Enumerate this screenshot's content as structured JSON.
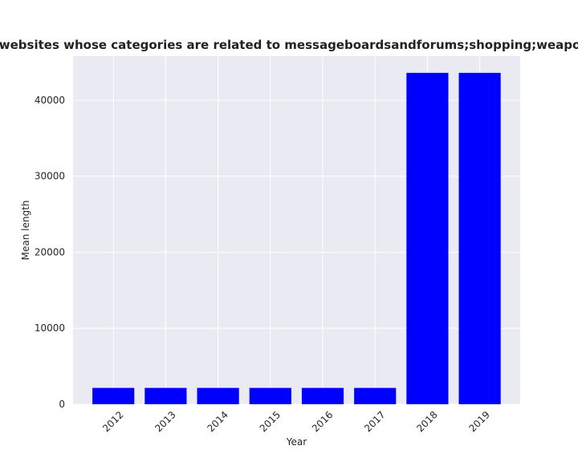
{
  "chart_data": {
    "type": "bar",
    "title": "Mean length in privacy policies of websites whose categories are related to messageboardsandforums;shopping;weapons Mean length in privacy policies",
    "xlabel": "Year",
    "ylabel": "Mean length",
    "categories": [
      "2012",
      "2013",
      "2014",
      "2015",
      "2016",
      "2017",
      "2018",
      "2019"
    ],
    "values": [
      2150,
      2150,
      2150,
      2150,
      2150,
      2150,
      43600,
      43600
    ],
    "ylim": [
      0,
      45800
    ],
    "yticks": [
      "0",
      "10000",
      "20000",
      "30000",
      "40000"
    ],
    "grid": true,
    "bar_color": "#0000ff",
    "plot_background": "#eaeaf2",
    "grid_color": "#ffffff"
  }
}
